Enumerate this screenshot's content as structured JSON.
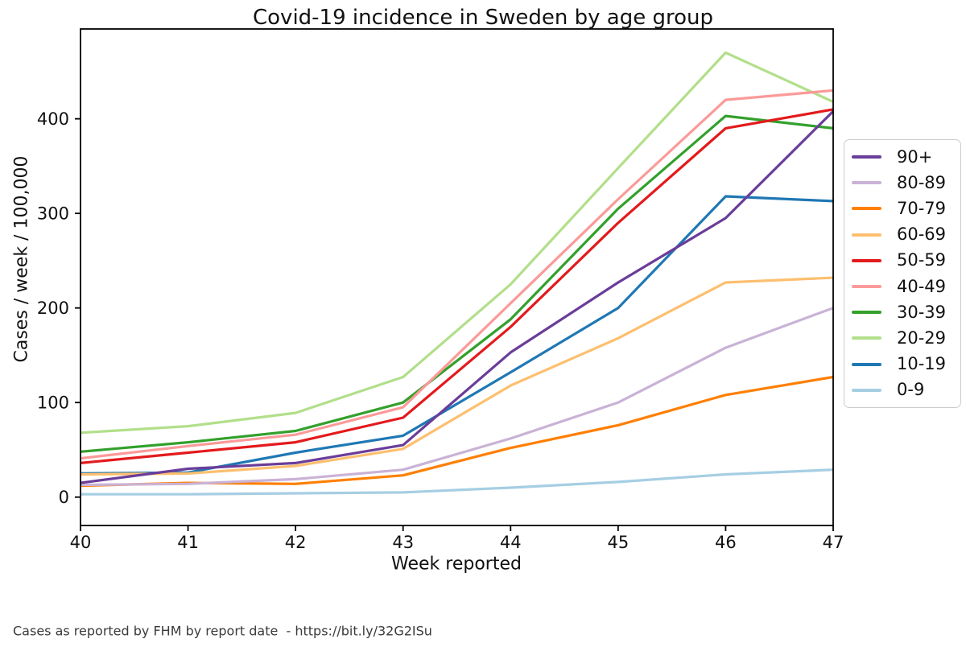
{
  "title": "Covid-19 incidence in Sweden by age group",
  "footer": "Cases as reported by FHM by report date  - https://bit.ly/32G2ISu",
  "chart_data": {
    "type": "line",
    "title": "Covid-19 incidence in Sweden by age group",
    "xlabel": "Week reported",
    "ylabel": "Cases / week / 100,000",
    "x": [
      40,
      41,
      42,
      43,
      44,
      45,
      46,
      47
    ],
    "xticks": [
      "40",
      "41",
      "42",
      "43",
      "44",
      "45",
      "46",
      "47"
    ],
    "yticks": [
      "0",
      "100",
      "200",
      "300",
      "400"
    ],
    "ytick_values": [
      0,
      100,
      200,
      300,
      400
    ],
    "xlim": [
      40,
      47
    ],
    "ylim": [
      -30,
      495
    ],
    "grid": false,
    "legend_position": "right",
    "series": [
      {
        "name": "90+",
        "color": "#6a3d9a",
        "values": [
          15,
          30,
          36,
          55,
          153,
          227,
          295,
          408
        ]
      },
      {
        "name": "80-89",
        "color": "#cab2d6",
        "values": [
          13,
          14,
          19,
          29,
          62,
          100,
          158,
          200
        ]
      },
      {
        "name": "70-79",
        "color": "#ff7f00",
        "values": [
          12,
          15,
          14,
          23,
          52,
          76,
          108,
          127
        ]
      },
      {
        "name": "60-69",
        "color": "#fdbf6f",
        "values": [
          24,
          25,
          33,
          51,
          118,
          168,
          227,
          232
        ]
      },
      {
        "name": "50-59",
        "color": "#e31a1c",
        "values": [
          36,
          47,
          58,
          84,
          180,
          290,
          390,
          410
        ]
      },
      {
        "name": "40-49",
        "color": "#fb9a99",
        "values": [
          41,
          54,
          66,
          95,
          205,
          315,
          420,
          430
        ]
      },
      {
        "name": "30-39",
        "color": "#33a02c",
        "values": [
          48,
          58,
          70,
          100,
          188,
          305,
          403,
          390
        ]
      },
      {
        "name": "20-29",
        "color": "#b2df8a",
        "values": [
          68,
          75,
          89,
          127,
          225,
          348,
          470,
          418
        ]
      },
      {
        "name": "10-19",
        "color": "#1f78b4",
        "values": [
          25,
          26,
          47,
          65,
          132,
          200,
          318,
          313
        ]
      },
      {
        "name": "0-9",
        "color": "#a6cee3",
        "values": [
          3,
          3,
          4,
          5,
          10,
          16,
          24,
          29
        ]
      }
    ]
  }
}
